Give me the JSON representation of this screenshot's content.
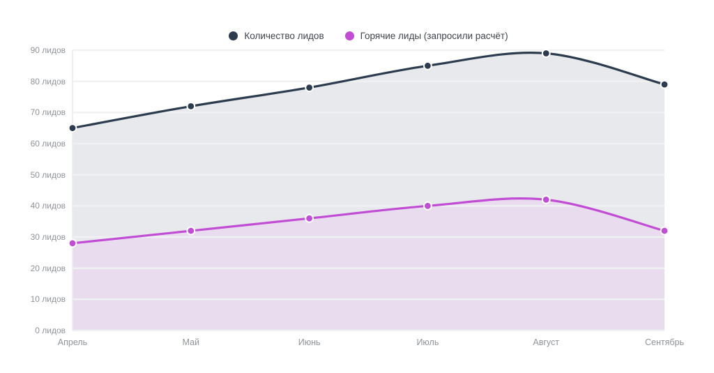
{
  "chart_data": {
    "type": "line",
    "title": "",
    "x": [
      "Апрель",
      "Май",
      "Июнь",
      "Июль",
      "Август",
      "Сентябрь"
    ],
    "series": [
      {
        "name": "Количество лидов",
        "values": [
          65,
          72,
          78,
          85,
          89,
          79
        ],
        "color": "#2c3b4e",
        "area_color": "#e8e9ec"
      },
      {
        "name": "Горячие лиды (запросили расчёт)",
        "values": [
          28,
          32,
          36,
          40,
          42,
          32
        ],
        "color": "#c04dd4",
        "area_color": "#e9dcef"
      }
    ],
    "ylim": [
      0,
      90
    ],
    "ytick_step": 10,
    "ytick_labels": [
      "0 лидов",
      "10 лидов",
      "20 лидов",
      "30 лидов",
      "40 лидов",
      "50 лидов",
      "60 лидов",
      "70 лидов",
      "80 лидов",
      "90 лидов"
    ],
    "grid": "on",
    "curve": "smooth",
    "legend_position": "top",
    "colors": {
      "background": "#ffffff",
      "grid_line": "#f0f1f3",
      "axis_line": "#ececef",
      "tick_text": "#8f9398",
      "legend_text": "#3f444a",
      "marker_border": "#ffffff"
    }
  }
}
